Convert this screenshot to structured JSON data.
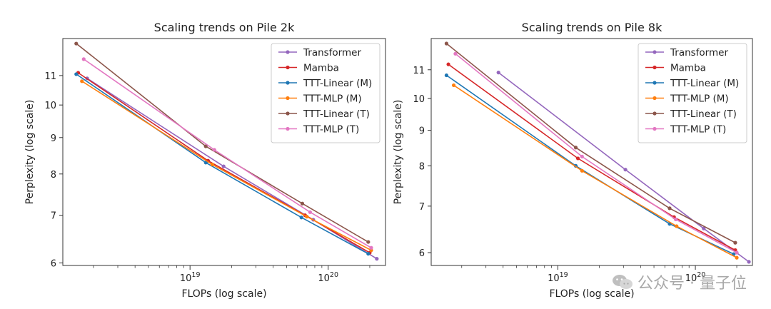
{
  "colors": {
    "Transformer": "#9467bd",
    "Mamba": "#d62728",
    "TTT-Linear (M)": "#1f77b4",
    "TTT-MLP (M)": "#ff7f0e",
    "TTT-Linear (T)": "#8c564b",
    "TTT-MLP (T)": "#e377c2"
  },
  "watermark": {
    "text": "公众号 · 量子位",
    "icon": "wechat-logo-icon"
  },
  "chart_data": [
    {
      "type": "line",
      "title": "Scaling trends on Pile 2k",
      "xlabel": "FLOPs (log scale)",
      "ylabel": "Perplexity (log scale)",
      "xscale": "log",
      "yscale": "log",
      "xlim": [
        1.2e+18,
        2.6e+20
      ],
      "ylim": [
        5.95,
        12.4
      ],
      "xticks": [
        {
          "value": 1e+19,
          "label": "10^19"
        },
        {
          "value": 1e+20,
          "label": "10^20"
        }
      ],
      "yticks": [
        6,
        7,
        8,
        9,
        10,
        11
      ],
      "grid": false,
      "legend": "top-right",
      "series": [
        {
          "name": "Transformer",
          "points": [
            [
              1.8e+18,
              10.9
            ],
            [
              1.75e+19,
              8.2
            ],
            [
              7.8e+19,
              6.9
            ],
            [
              2.25e+20,
              6.08
            ]
          ]
        },
        {
          "name": "Mamba",
          "points": [
            [
              1.55e+18,
              11.1
            ],
            [
              1.35e+19,
              8.35
            ],
            [
              6.8e+19,
              7.0
            ],
            [
              2e+20,
              6.2
            ]
          ]
        },
        {
          "name": "TTT-Linear (M)",
          "points": [
            [
              1.5e+18,
              11.05
            ],
            [
              1.3e+19,
              8.3
            ],
            [
              6.4e+19,
              6.95
            ],
            [
              1.95e+20,
              6.18
            ]
          ]
        },
        {
          "name": "TTT-MLP (M)",
          "points": [
            [
              1.65e+18,
              10.8
            ],
            [
              1.45e+19,
              8.25
            ],
            [
              7e+19,
              6.97
            ],
            [
              2.05e+20,
              6.25
            ]
          ]
        },
        {
          "name": "TTT-Linear (T)",
          "points": [
            [
              1.5e+18,
              12.2
            ],
            [
              1.3e+19,
              8.75
            ],
            [
              6.5e+19,
              7.27
            ],
            [
              1.95e+20,
              6.42
            ]
          ]
        },
        {
          "name": "TTT-MLP (T)",
          "points": [
            [
              1.7e+18,
              11.6
            ],
            [
              1.5e+19,
              8.65
            ],
            [
              7.4e+19,
              7.07
            ],
            [
              2.05e+20,
              6.3
            ]
          ]
        }
      ]
    },
    {
      "type": "line",
      "title": "Scaling trends on Pile 8k",
      "xlabel": "FLOPs (log scale)",
      "ylabel": "Perplexity (log scale)",
      "xscale": "log",
      "yscale": "log",
      "xlim": [
        1.2e+18,
        2.6e+20
      ],
      "ylim": [
        5.75,
        12.2
      ],
      "xticks": [
        {
          "value": 1e+19,
          "label": "10^19"
        },
        {
          "value": 1e+20,
          "label": "10^20"
        }
      ],
      "yticks": [
        6,
        7,
        8,
        9,
        10,
        11
      ],
      "grid": false,
      "legend": "top-right",
      "series": [
        {
          "name": "Transformer",
          "points": [
            [
              3.7e+18,
              10.9
            ],
            [
              3.1e+19,
              7.9
            ],
            [
              1.15e+20,
              6.5
            ],
            [
              2.45e+20,
              5.82
            ]
          ]
        },
        {
          "name": "Mamba",
          "points": [
            [
              1.6e+18,
              11.2
            ],
            [
              1.4e+19,
              8.2
            ],
            [
              7e+19,
              6.75
            ],
            [
              1.95e+20,
              6.05
            ]
          ]
        },
        {
          "name": "TTT-Linear (M)",
          "points": [
            [
              1.55e+18,
              10.8
            ],
            [
              1.35e+19,
              8.0
            ],
            [
              6.5e+19,
              6.6
            ],
            [
              1.9e+20,
              5.97
            ]
          ]
        },
        {
          "name": "TTT-MLP (M)",
          "points": [
            [
              1.75e+18,
              10.45
            ],
            [
              1.5e+19,
              7.87
            ],
            [
              7.3e+19,
              6.55
            ],
            [
              2e+20,
              5.9
            ]
          ]
        },
        {
          "name": "TTT-Linear (T)",
          "points": [
            [
              1.55e+18,
              12.0
            ],
            [
              1.35e+19,
              8.5
            ],
            [
              6.5e+19,
              6.95
            ],
            [
              1.95e+20,
              6.2
            ]
          ]
        },
        {
          "name": "TTT-MLP (T)",
          "points": [
            [
              1.8e+18,
              11.6
            ],
            [
              1.5e+19,
              8.25
            ],
            [
              7.2e+19,
              6.7
            ],
            [
              2e+20,
              6.0
            ]
          ]
        }
      ]
    }
  ]
}
